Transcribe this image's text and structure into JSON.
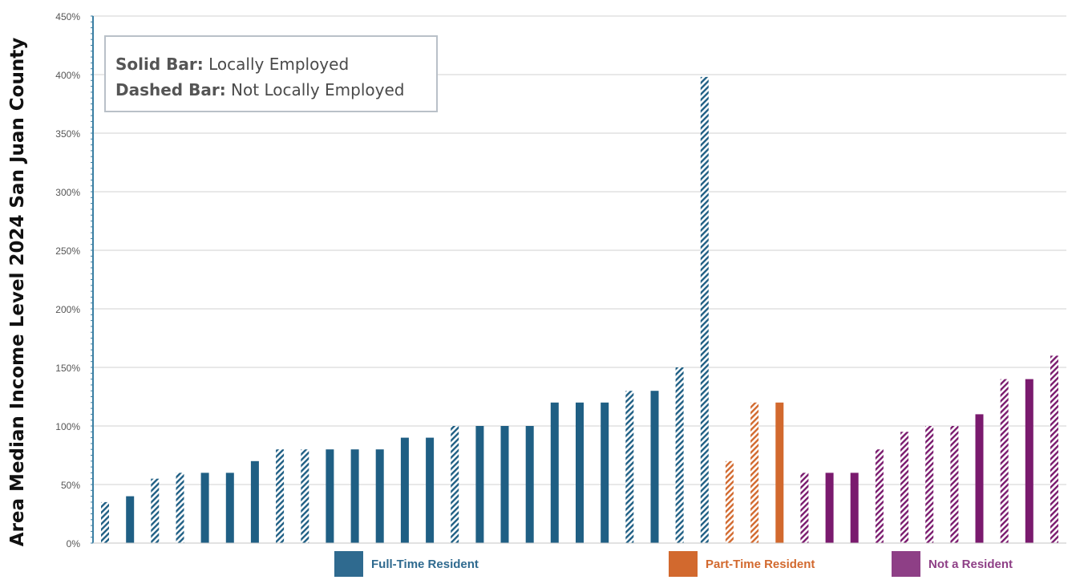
{
  "chart_data": {
    "type": "bar",
    "ylabel": "Area Median Income Level 2024 San Juan County",
    "ylim": [
      0,
      4.5
    ],
    "yticks": [
      0,
      0.5,
      1,
      1.5,
      2,
      2.5,
      3,
      3.5,
      4,
      4.5
    ],
    "ytick_labels": [
      "0%",
      "50%",
      "100%",
      "150%",
      "200%",
      "250%",
      "300%",
      "350%",
      "400%",
      "450%"
    ],
    "grid": true,
    "note": {
      "solid_label": "Solid Bar:",
      "solid_text": "Locally Employed",
      "dashed_label": "Dashed Bar:",
      "dashed_text": "Not Locally Employed"
    },
    "legend": [
      {
        "name": "Full-Time Resident",
        "color": "#2f6a8f"
      },
      {
        "name": "Part-Time Resident",
        "color": "#d2692e"
      },
      {
        "name": "Not a Resident",
        "color": "#8e3f86"
      }
    ],
    "bars": [
      {
        "group": "Full-Time Resident",
        "locally_employed": false,
        "value": 0.35
      },
      {
        "group": "Full-Time Resident",
        "locally_employed": true,
        "value": 0.4
      },
      {
        "group": "Full-Time Resident",
        "locally_employed": false,
        "value": 0.55
      },
      {
        "group": "Full-Time Resident",
        "locally_employed": false,
        "value": 0.6
      },
      {
        "group": "Full-Time Resident",
        "locally_employed": true,
        "value": 0.6
      },
      {
        "group": "Full-Time Resident",
        "locally_employed": true,
        "value": 0.6
      },
      {
        "group": "Full-Time Resident",
        "locally_employed": true,
        "value": 0.7
      },
      {
        "group": "Full-Time Resident",
        "locally_employed": false,
        "value": 0.8
      },
      {
        "group": "Full-Time Resident",
        "locally_employed": false,
        "value": 0.8
      },
      {
        "group": "Full-Time Resident",
        "locally_employed": true,
        "value": 0.8
      },
      {
        "group": "Full-Time Resident",
        "locally_employed": true,
        "value": 0.8
      },
      {
        "group": "Full-Time Resident",
        "locally_employed": true,
        "value": 0.8
      },
      {
        "group": "Full-Time Resident",
        "locally_employed": true,
        "value": 0.9
      },
      {
        "group": "Full-Time Resident",
        "locally_employed": true,
        "value": 0.9
      },
      {
        "group": "Full-Time Resident",
        "locally_employed": false,
        "value": 1.0
      },
      {
        "group": "Full-Time Resident",
        "locally_employed": true,
        "value": 1.0
      },
      {
        "group": "Full-Time Resident",
        "locally_employed": true,
        "value": 1.0
      },
      {
        "group": "Full-Time Resident",
        "locally_employed": true,
        "value": 1.0
      },
      {
        "group": "Full-Time Resident",
        "locally_employed": true,
        "value": 1.2
      },
      {
        "group": "Full-Time Resident",
        "locally_employed": true,
        "value": 1.2
      },
      {
        "group": "Full-Time Resident",
        "locally_employed": true,
        "value": 1.2
      },
      {
        "group": "Full-Time Resident",
        "locally_employed": false,
        "value": 1.3
      },
      {
        "group": "Full-Time Resident",
        "locally_employed": true,
        "value": 1.3
      },
      {
        "group": "Full-Time Resident",
        "locally_employed": false,
        "value": 1.5
      },
      {
        "group": "Full-Time Resident",
        "locally_employed": false,
        "value": 3.98
      },
      {
        "group": "Part-Time Resident",
        "locally_employed": false,
        "value": 0.7
      },
      {
        "group": "Part-Time Resident",
        "locally_employed": false,
        "value": 1.2
      },
      {
        "group": "Part-Time Resident",
        "locally_employed": true,
        "value": 1.2
      },
      {
        "group": "Not a Resident",
        "locally_employed": false,
        "value": 0.6
      },
      {
        "group": "Not a Resident",
        "locally_employed": true,
        "value": 0.6
      },
      {
        "group": "Not a Resident",
        "locally_employed": true,
        "value": 0.6
      },
      {
        "group": "Not a Resident",
        "locally_employed": false,
        "value": 0.8
      },
      {
        "group": "Not a Resident",
        "locally_employed": false,
        "value": 0.95
      },
      {
        "group": "Not a Resident",
        "locally_employed": false,
        "value": 1.0
      },
      {
        "group": "Not a Resident",
        "locally_employed": false,
        "value": 1.0
      },
      {
        "group": "Not a Resident",
        "locally_employed": true,
        "value": 1.1
      },
      {
        "group": "Not a Resident",
        "locally_employed": false,
        "value": 1.4
      },
      {
        "group": "Not a Resident",
        "locally_employed": true,
        "value": 1.4
      },
      {
        "group": "Not a Resident",
        "locally_employed": false,
        "value": 1.6
      }
    ],
    "colors": {
      "Full-Time Resident": "#1f5f84",
      "Part-Time Resident": "#d2692e",
      "Not a Resident": "#7a1a6e",
      "axis": "#3b7fa3",
      "grid": "#d9d9d9"
    }
  }
}
